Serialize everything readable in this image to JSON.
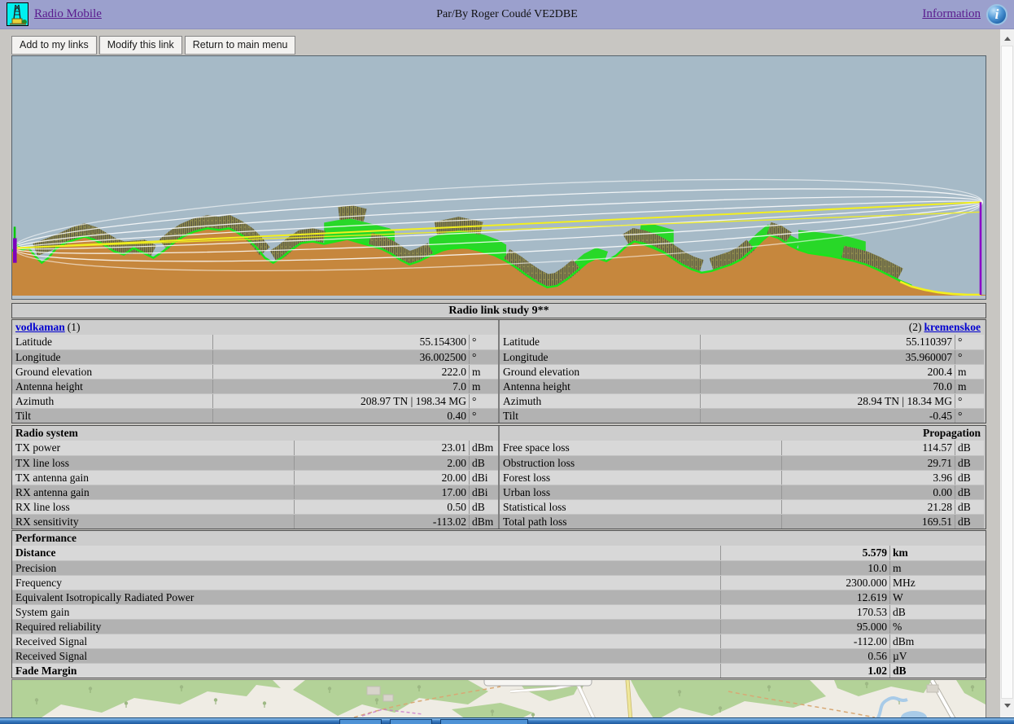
{
  "header": {
    "app_link": "Radio Mobile",
    "byline": "Par/By Roger Coudé VE2DBE",
    "info_link": "Information",
    "info_icon_glyph": "i"
  },
  "toolbar": {
    "buttons": [
      "Add to my links",
      "Modify this link",
      "Return to main menu"
    ]
  },
  "study": {
    "title": "Radio link study 9**",
    "site1": {
      "name": "vodkaman",
      "index": "(1)",
      "rows": [
        {
          "label": "Latitude",
          "value": "55.154300",
          "unit": "°"
        },
        {
          "label": "Longitude",
          "value": "36.002500",
          "unit": "°"
        },
        {
          "label": "Ground elevation",
          "value": "222.0",
          "unit": "m"
        },
        {
          "label": "Antenna height",
          "value": "7.0",
          "unit": "m"
        },
        {
          "label": "Azimuth",
          "value": "208.97 TN | 198.34 MG",
          "unit": "°"
        },
        {
          "label": "Tilt",
          "value": "0.40",
          "unit": "°"
        }
      ]
    },
    "site2": {
      "name": "kremenskoe",
      "index": "(2)",
      "rows": [
        {
          "label": "Latitude",
          "value": "55.110397",
          "unit": "°"
        },
        {
          "label": "Longitude",
          "value": "35.960007",
          "unit": "°"
        },
        {
          "label": "Ground elevation",
          "value": "200.4",
          "unit": "m"
        },
        {
          "label": "Antenna height",
          "value": "70.0",
          "unit": "m"
        },
        {
          "label": "Azimuth",
          "value": "28.94 TN | 18.34 MG",
          "unit": "°"
        },
        {
          "label": "Tilt",
          "value": "-0.45",
          "unit": "°"
        }
      ]
    },
    "radio_system": {
      "title": "Radio system",
      "rows": [
        {
          "label": "TX power",
          "value": "23.01",
          "unit": "dBm"
        },
        {
          "label": "TX line loss",
          "value": "2.00",
          "unit": "dB"
        },
        {
          "label": "TX antenna gain",
          "value": "20.00",
          "unit": "dBi"
        },
        {
          "label": "RX antenna gain",
          "value": "17.00",
          "unit": "dBi"
        },
        {
          "label": "RX line loss",
          "value": "0.50",
          "unit": "dB"
        },
        {
          "label": "RX sensitivity",
          "value": "-113.02",
          "unit": "dBm"
        }
      ]
    },
    "propagation": {
      "title": "Propagation",
      "rows": [
        {
          "label": "Free space loss",
          "value": "114.57",
          "unit": "dB"
        },
        {
          "label": "Obstruction loss",
          "value": "29.71",
          "unit": "dB"
        },
        {
          "label": "Forest loss",
          "value": "3.96",
          "unit": "dB"
        },
        {
          "label": "Urban loss",
          "value": "0.00",
          "unit": "dB"
        },
        {
          "label": "Statistical loss",
          "value": "21.28",
          "unit": "dB"
        },
        {
          "label": "Total path loss",
          "value": "169.51",
          "unit": "dB"
        }
      ]
    },
    "performance": {
      "title": "Performance",
      "rows": [
        {
          "label": "Distance",
          "value": "5.579",
          "unit": "km",
          "bold": true
        },
        {
          "label": "Precision",
          "value": "10.0",
          "unit": "m"
        },
        {
          "label": "Frequency",
          "value": "2300.000",
          "unit": "MHz"
        },
        {
          "label": "Equivalent Isotropically Radiated Power",
          "value": "12.619",
          "unit": "W"
        },
        {
          "label": "System gain",
          "value": "170.53",
          "unit": "dB"
        },
        {
          "label": "Required reliability",
          "value": "95.000",
          "unit": "%"
        },
        {
          "label": "Received Signal",
          "value": "-112.00",
          "unit": "dBm"
        },
        {
          "label": "Received Signal",
          "value": "0.56",
          "unit": "µV"
        },
        {
          "label": "Fade Margin",
          "value": "1.02",
          "unit": "dB",
          "bold": true
        }
      ]
    }
  },
  "colors": {
    "header_bg": "#9ba0cd",
    "visited_link": "#5a1b8e",
    "site_link": "#0000d0",
    "row_light": "#d8d8d8",
    "row_dark": "#b2b2b2",
    "profile_sky": "#a6bac7",
    "profile_ground": "#c6873d",
    "profile_vegetation": "#28d828",
    "profile_los_line": "#f2ef1f",
    "profile_fresnel_line": "#ffffff",
    "profile_antenna": "#7d00bd",
    "map_forest": "#b3d298",
    "taskbar_blue": "#2e6db4"
  }
}
